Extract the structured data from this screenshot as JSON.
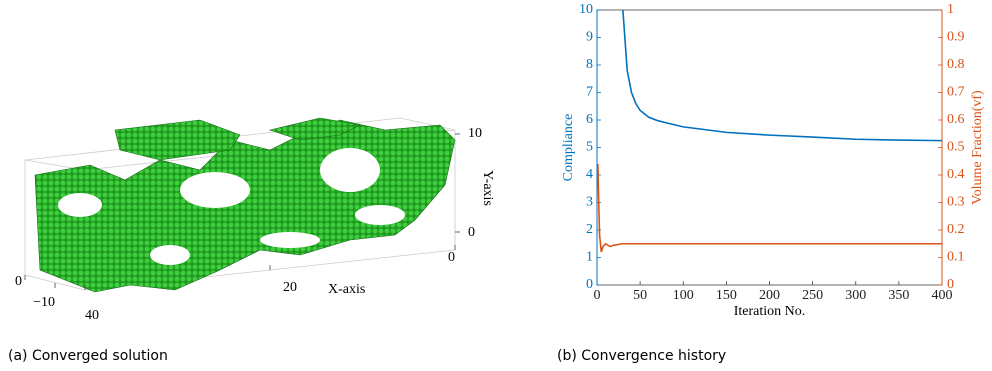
{
  "chart_data": [
    {
      "type": "voxel3d",
      "caption": "(a) Converged solution",
      "color": "#1e9e1e",
      "xlabel": "X-axis",
      "ylabel": "Y-axis",
      "xticks": [
        0,
        20,
        40
      ],
      "yticks": [
        0,
        10
      ],
      "zticks": [
        {
          "value": -10,
          "label": "−10"
        },
        0
      ]
    },
    {
      "type": "line",
      "caption": "(b) Convergence history",
      "xlabel": "Iteration No.",
      "ylabel": "Compliance",
      "y2label": "Volume Fraction(vf)",
      "xlim": [
        0,
        400
      ],
      "xticks": [
        0,
        50,
        100,
        150,
        200,
        250,
        300,
        350,
        400
      ],
      "ylim": [
        0,
        10
      ],
      "yticks": [
        0,
        1,
        2,
        3,
        4,
        5,
        6,
        7,
        8,
        9,
        10
      ],
      "y2lim": [
        0,
        1
      ],
      "y2ticks": [
        0,
        0.1,
        0.2,
        0.3,
        0.4,
        0.5,
        0.6,
        0.7,
        0.8,
        0.9,
        1
      ],
      "series": [
        {
          "name": "Compliance",
          "color": "#0072bd",
          "x": [
            30,
            35,
            40,
            45,
            50,
            60,
            70,
            80,
            100,
            125,
            150,
            200,
            250,
            300,
            350,
            400
          ],
          "values": [
            10,
            7.8,
            7.0,
            6.6,
            6.35,
            6.1,
            5.98,
            5.9,
            5.75,
            5.65,
            5.55,
            5.45,
            5.38,
            5.3,
            5.27,
            5.25
          ]
        },
        {
          "name": "Volume Fraction(vf)",
          "color": "#d95319",
          "axis": "y2",
          "x": [
            1,
            2,
            3,
            5,
            7,
            10,
            15,
            20,
            30,
            50,
            100,
            400
          ],
          "values": [
            0.44,
            0.3,
            0.18,
            0.12,
            0.14,
            0.15,
            0.14,
            0.145,
            0.15,
            0.15,
            0.15,
            0.15
          ]
        }
      ]
    }
  ]
}
